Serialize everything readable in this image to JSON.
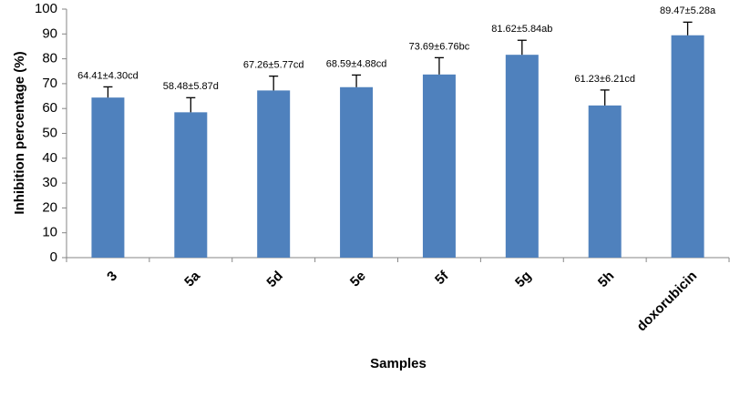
{
  "chart_data": {
    "type": "bar",
    "x_label": "Samples",
    "y_label": "Inhibition percentage (%)",
    "categories": [
      "3",
      "5a",
      "5d",
      "5e",
      "5f",
      "5g",
      "5h",
      "doxorubicin"
    ],
    "values": [
      64.41,
      58.48,
      67.26,
      68.59,
      73.69,
      81.62,
      61.23,
      89.47
    ],
    "errors": [
      4.3,
      5.87,
      5.77,
      4.88,
      6.76,
      5.84,
      6.21,
      5.28
    ],
    "value_labels": [
      "64.41±4.30cd",
      "58.48±5.87d",
      "67.26±5.77cd",
      "68.59±4.88cd",
      "73.69±6.76bc",
      "81.62±5.84ab",
      "61.23±6.21cd",
      "89.47±5.28a"
    ],
    "color": "#4f81bd",
    "ylim": [
      0,
      100
    ],
    "yticks": [
      0,
      10,
      20,
      30,
      40,
      50,
      60,
      70,
      80,
      90,
      100
    ],
    "grid": false
  }
}
